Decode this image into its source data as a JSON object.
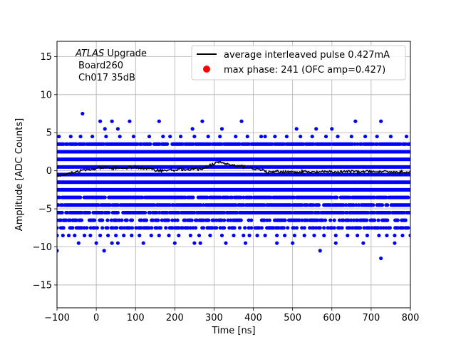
{
  "chart_data": {
    "type": "scatter",
    "xlabel": "Time [ns]",
    "ylabel": "Amplitude [ADC Counts]",
    "xlim": [
      -100,
      800
    ],
    "ylim": [
      -18,
      17
    ],
    "x_ticks": [
      -100,
      0,
      100,
      200,
      300,
      400,
      500,
      600,
      700,
      800
    ],
    "y_ticks": [
      -15,
      -10,
      -5,
      0,
      5,
      10,
      15
    ],
    "grid": true,
    "legend_position": "top-right",
    "annotation": {
      "line1_italic": "ATLAS",
      "line1_rest": " Upgrade",
      "line2": "Board260",
      "line3": "Ch017 35dB"
    },
    "series": [
      {
        "name": "average interleaved pulse 0.427mA",
        "kind": "line",
        "color": "#000000",
        "x": [
          -100,
          -90,
          -80,
          -70,
          -60,
          -50,
          -40,
          -30,
          -20,
          -10,
          0,
          10,
          20,
          30,
          40,
          50,
          60,
          70,
          80,
          90,
          100,
          110,
          120,
          130,
          140,
          150,
          160,
          170,
          180,
          190,
          200,
          210,
          220,
          230,
          240,
          250,
          260,
          270,
          280,
          290,
          300,
          310,
          320,
          330,
          340,
          350,
          360,
          370,
          380,
          390,
          400,
          410,
          420,
          430,
          440,
          450,
          460,
          470,
          480,
          490,
          500,
          510,
          520,
          530,
          540,
          550,
          560,
          570,
          580,
          590,
          600,
          610,
          620,
          630,
          640,
          650,
          660,
          670,
          680,
          690,
          700,
          710,
          720,
          730,
          740,
          750,
          760,
          770,
          780,
          790,
          800
        ],
        "y": [
          -0.8,
          -0.6,
          -0.4,
          -0.3,
          -0.2,
          -0.1,
          0.0,
          0.1,
          0.1,
          0.2,
          0.3,
          0.4,
          0.4,
          0.4,
          0.3,
          0.4,
          0.4,
          0.3,
          0.4,
          0.4,
          0.5,
          0.4,
          0.3,
          0.3,
          0.2,
          0.1,
          0.1,
          0.0,
          0.1,
          0.1,
          0.1,
          0.2,
          0.2,
          0.1,
          0.1,
          0.3,
          0.2,
          0.3,
          0.5,
          0.7,
          0.9,
          1.1,
          1.1,
          0.9,
          0.8,
          0.7,
          0.6,
          0.6,
          0.5,
          0.4,
          0.3,
          0.2,
          0.1,
          -0.1,
          -0.2,
          -0.2,
          -0.1,
          -0.2,
          -0.1,
          -0.1,
          -0.2,
          -0.2,
          -0.1,
          -0.1,
          -0.2,
          -0.2,
          -0.2,
          -0.1,
          -0.2,
          -0.1,
          -0.1,
          -0.2,
          -0.2,
          -0.1,
          -0.1,
          -0.1,
          -0.1,
          -0.2,
          -0.1,
          -0.1,
          0.0,
          -0.2,
          -0.1,
          -0.2,
          -0.1,
          -0.1,
          -0.2,
          -0.2,
          -0.1,
          -0.2,
          -0.1
        ]
      },
      {
        "name": "max phase: 241 (OFC amp=0.427)",
        "kind": "marker",
        "color": "#ff0000",
        "x": [],
        "y": []
      },
      {
        "name": "",
        "kind": "scatter",
        "color": "#0000ff",
        "bands": [
          -7.5,
          -6.5,
          -5.5,
          -4.5,
          -3.5,
          -2.5,
          -1.5,
          -0.5,
          0.5,
          1.5,
          2.5,
          3.5
        ],
        "band_x_step": 3.3,
        "x": [
          -35,
          10,
          22,
          40,
          55,
          85,
          160,
          188,
          245,
          270,
          320,
          370,
          430,
          510,
          560,
          600,
          660,
          725,
          -100,
          -45,
          0,
          20,
          40,
          55,
          120,
          200,
          250,
          265,
          330,
          380,
          460,
          500,
          570,
          610,
          680,
          725,
          760,
          -100,
          -85,
          -70,
          -55,
          -30,
          -15,
          10,
          30,
          50,
          70,
          90,
          110,
          140,
          160,
          185,
          210,
          240,
          262,
          290,
          320,
          350,
          375,
          390,
          410,
          430,
          460,
          480,
          505,
          530,
          555,
          580,
          610,
          640,
          665,
          690,
          720,
          740,
          760,
          780,
          800,
          -95,
          -65,
          -40,
          -10,
          25,
          60,
          95,
          135,
          170,
          215,
          250,
          285,
          315,
          355,
          385,
          420,
          455,
          485,
          520,
          550,
          585,
          615,
          650,
          685,
          715,
          750,
          790
        ],
        "y": [
          7.5,
          6.5,
          5.5,
          6.5,
          5.5,
          6.5,
          6.5,
          4.5,
          5.5,
          6.5,
          5.5,
          6.5,
          4.5,
          5.5,
          5.5,
          5.5,
          6.5,
          6.5,
          -10.5,
          -9.5,
          -9.5,
          -10.5,
          -9.5,
          -9.5,
          -9.5,
          -9.5,
          -9.5,
          -9.5,
          -9.5,
          -9.5,
          -9.5,
          -9.5,
          -10.5,
          -9.5,
          -9.5,
          -11.5,
          -9.5,
          -8.5,
          -8.5,
          -8.5,
          -8.5,
          -8.5,
          -8.5,
          -8.5,
          -8.5,
          -8.5,
          -8.5,
          -8.5,
          -8.5,
          -8.5,
          -8.5,
          -8.5,
          -8.5,
          -8.5,
          -8.5,
          -8.5,
          -8.5,
          -8.5,
          -8.5,
          -8.5,
          -8.5,
          -8.5,
          -8.5,
          -8.5,
          -8.5,
          -8.5,
          -8.5,
          -8.5,
          -8.5,
          -8.5,
          -8.5,
          -8.5,
          -8.5,
          -8.5,
          -8.5,
          -8.5,
          -8.5,
          4.5,
          4.5,
          4.5,
          4.5,
          4.5,
          4.5,
          4.5,
          4.5,
          4.5,
          4.5,
          4.5,
          4.5,
          4.5,
          4.5,
          4.5,
          4.5,
          4.5,
          4.5,
          4.5,
          4.5,
          4.5,
          4.5,
          4.5,
          4.5,
          4.5,
          4.5,
          4.5
        ]
      }
    ]
  }
}
